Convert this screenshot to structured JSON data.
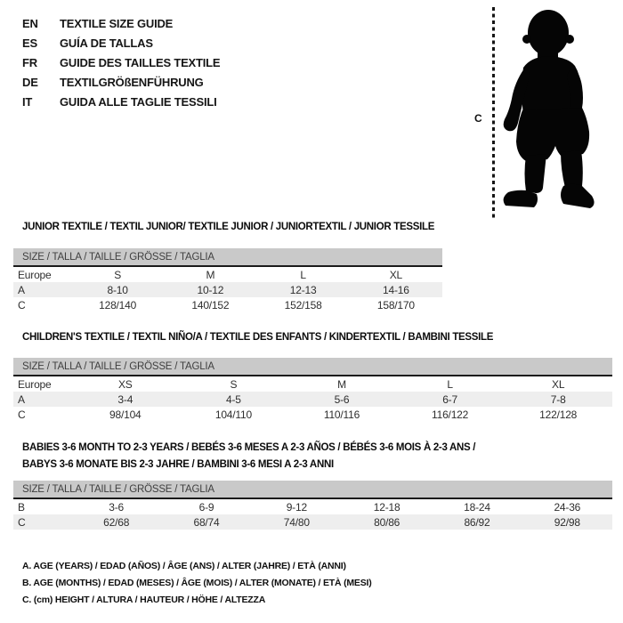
{
  "colors": {
    "background": "#ffffff",
    "size_header_bar": "#c9c9c9",
    "row_shade": "#eeeeee",
    "header_rule": "#1b1b1b",
    "text": "#161616",
    "silhouette": "#050505"
  },
  "languages": [
    {
      "code": "EN",
      "label": "TEXTILE SIZE GUIDE"
    },
    {
      "code": "ES",
      "label": "GUÍA DE TALLAS"
    },
    {
      "code": "FR",
      "label": "GUIDE DES TAILLES TEXTILE"
    },
    {
      "code": "DE",
      "label": "TEXTILGRÖßENFÜHRUNG"
    },
    {
      "code": "IT",
      "label": "GUIDA ALLE TAGLIE TESSILI"
    }
  ],
  "figure": {
    "icon": "toddler-silhouette",
    "measure_label": "C"
  },
  "tables": [
    {
      "title": "JUNIOR TEXTILE / TEXTIL JUNIOR/ TEXTILE JUNIOR / JUNIORTEXTIL / JUNIOR TESSILE",
      "size_header": "SIZE / TALLA / TAILLE / GRÖSSE / TAGLIA",
      "rows": [
        {
          "label": "Europe",
          "cells": [
            "S",
            "M",
            "L",
            "XL"
          ]
        },
        {
          "label": "A",
          "cells": [
            "8-10",
            "10-12",
            "12-13",
            "14-16"
          ]
        },
        {
          "label": "C",
          "cells": [
            "128/140",
            "140/152",
            "152/158",
            "158/170"
          ]
        }
      ]
    },
    {
      "title": "CHILDREN'S TEXTILE / TEXTIL NIÑO/A / TEXTILE DES ENFANTS / KINDERTEXTIL / BAMBINI TESSILE",
      "size_header": "SIZE / TALLA / TAILLE / GRÖSSE / TAGLIA",
      "rows": [
        {
          "label": "Europe",
          "cells": [
            "XS",
            "S",
            "M",
            "L",
            "XL"
          ]
        },
        {
          "label": "A",
          "cells": [
            "3-4",
            "4-5",
            "5-6",
            "6-7",
            "7-8"
          ]
        },
        {
          "label": "C",
          "cells": [
            "98/104",
            "104/110",
            "110/116",
            "116/122",
            "122/128"
          ]
        }
      ]
    },
    {
      "title": "BABIES 3-6 MONTH TO 2-3 YEARS / BEBÉS 3-6 MESES A 2-3 AÑOS / BÉBÉS 3-6 MOIS À 2-3 ANS /\nBABYS 3-6 MONATE BIS 2-3 JAHRE / BAMBINI 3-6 MESI A 2-3 ANNI",
      "size_header": "SIZE / TALLA / TAILLE / GRÖSSE / TAGLIA",
      "rows": [
        {
          "label": "B",
          "cells": [
            "3-6",
            "6-9",
            "9-12",
            "12-18",
            "18-24",
            "24-36"
          ]
        },
        {
          "label": "C",
          "cells": [
            "62/68",
            "68/74",
            "74/80",
            "80/86",
            "86/92",
            "92/98"
          ]
        }
      ]
    }
  ],
  "notes": [
    "A. AGE (YEARS) / EDAD (AÑOS) / ÂGE (ANS) / ALTER (JAHRE) / ETÀ (ANNI)",
    "B. AGE (MONTHS) / EDAD (MESES) / ÂGE (MOIS) / ALTER (MONATE) / ETÀ (MESI)",
    "C. (cm) HEIGHT / ALTURA / HAUTEUR / HÖHE / ALTEZZA"
  ]
}
